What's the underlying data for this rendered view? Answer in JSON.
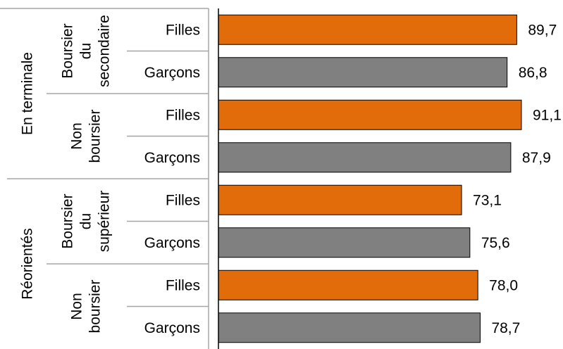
{
  "chart_data": {
    "type": "bar",
    "orientation": "horizontal",
    "groups": [
      {
        "label": "En terminale",
        "subgroups": [
          {
            "label_lines": [
              "Boursier",
              "du",
              "secondaire"
            ],
            "bars": [
              {
                "label": "Filles",
                "value": 89.7,
                "value_label": "89,7"
              },
              {
                "label": "Garçons",
                "value": 86.8,
                "value_label": "86,8"
              }
            ]
          },
          {
            "label_lines": [
              "Non",
              "boursier"
            ],
            "bars": [
              {
                "label": "Filles",
                "value": 91.1,
                "value_label": "91,1"
              },
              {
                "label": "Garçons",
                "value": 87.9,
                "value_label": "87,9"
              }
            ]
          }
        ]
      },
      {
        "label": "Réorientés",
        "subgroups": [
          {
            "label_lines": [
              "Boursier",
              "du",
              "supérieur"
            ],
            "bars": [
              {
                "label": "Filles",
                "value": 73.1,
                "value_label": "73,1"
              },
              {
                "label": "Garçons",
                "value": 75.6,
                "value_label": "75,6"
              }
            ]
          },
          {
            "label_lines": [
              "Non",
              "boursier"
            ],
            "bars": [
              {
                "label": "Filles",
                "value": 78.0,
                "value_label": "78,0"
              },
              {
                "label": "Garçons",
                "value": 78.7,
                "value_label": "78,7"
              }
            ]
          }
        ]
      }
    ],
    "colors": {
      "Filles": "#E36C0A",
      "Garçons": "#808080"
    },
    "bar_outline": "#000000",
    "separator_color": "#A6A6A6",
    "xlim": [
      0,
      100
    ],
    "grid": false,
    "legend": "none"
  }
}
